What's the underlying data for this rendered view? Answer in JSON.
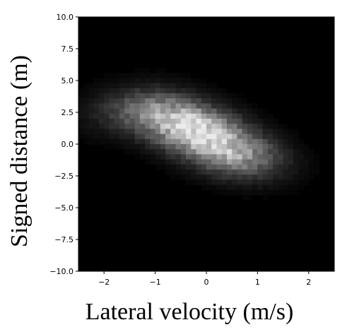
{
  "chart_data": {
    "type": "heatmap",
    "title": "",
    "xlabel": "Lateral velocity (m/s)",
    "ylabel": "Signed distance (m)",
    "xlim": [
      -2.5,
      2.5
    ],
    "ylim": [
      -10.0,
      10.0
    ],
    "x_ticks": [
      -2,
      -1,
      0,
      1,
      2
    ],
    "x_tick_labels": [
      "−2",
      "−1",
      "0",
      "1",
      "2"
    ],
    "y_ticks": [
      10.0,
      7.5,
      5.0,
      2.5,
      0.0,
      -2.5,
      -5.0,
      -7.5,
      -10.0
    ],
    "y_tick_labels": [
      "10.0",
      "7.5",
      "5.0",
      "2.5",
      "0.0",
      "−2.5",
      "−5.0",
      "−7.5",
      "−10.0"
    ],
    "colormap": "gray",
    "grid": false,
    "density_components": [
      {
        "x_center": -0.3,
        "y_center": 1.3,
        "sigma_along": 0.85,
        "sigma_across": 0.55,
        "slope": -1.2,
        "weight": 1.0
      },
      {
        "x_center": 0.6,
        "y_center": -0.9,
        "sigma_along": 0.7,
        "sigma_across": 0.55,
        "slope": -1.2,
        "weight": 0.55
      },
      {
        "x_center": -1.4,
        "y_center": 2.6,
        "sigma_along": 0.6,
        "sigma_across": 0.7,
        "slope": -1.2,
        "weight": 0.25
      }
    ]
  }
}
